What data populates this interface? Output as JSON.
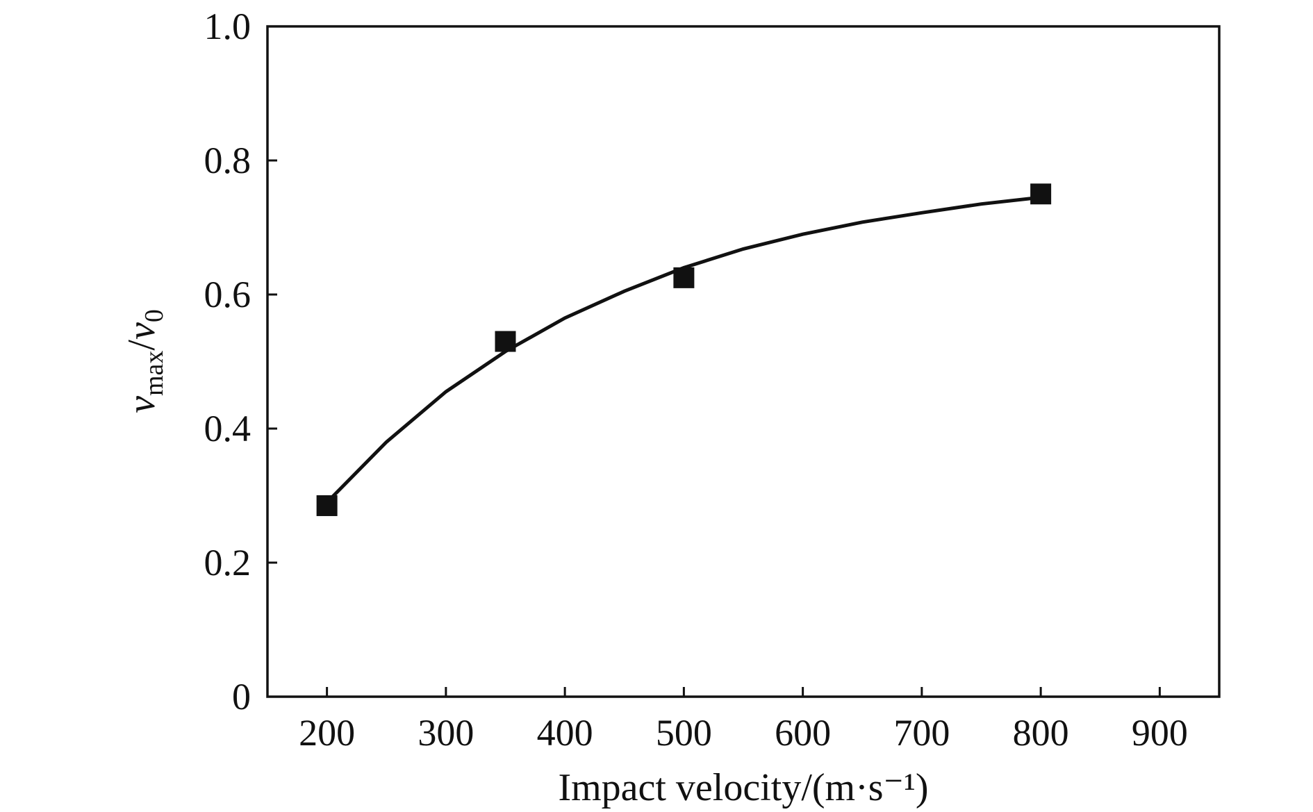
{
  "chart_data": {
    "type": "scatter",
    "x_ticks": [
      "200",
      "300",
      "400",
      "500",
      "600",
      "700",
      "800",
      "900"
    ],
    "y_ticks": [
      "0",
      "0.2",
      "0.4",
      "0.6",
      "0.8",
      "1.0"
    ],
    "xlim": [
      150,
      950
    ],
    "ylim": [
      0,
      1.0
    ],
    "xlabel": "Impact velocity/(m·s⁻¹)",
    "ylabel": {
      "main1": "v",
      "sub1": "max",
      "slash": "/",
      "main2": "v",
      "sub2": "0"
    },
    "grid": false,
    "series": [
      {
        "type": "scatter",
        "marker": "square",
        "x": [
          200,
          350,
          500,
          800
        ],
        "y": [
          0.285,
          0.53,
          0.625,
          0.75
        ]
      },
      {
        "type": "line",
        "x": [
          200,
          250,
          300,
          350,
          400,
          450,
          500,
          550,
          600,
          650,
          700,
          750,
          800
        ],
        "y": [
          0.29,
          0.38,
          0.455,
          0.515,
          0.565,
          0.605,
          0.64,
          0.668,
          0.69,
          0.708,
          0.722,
          0.735,
          0.745
        ]
      }
    ],
    "colors": {
      "ink": "#111111",
      "background": "#ffffff"
    }
  }
}
